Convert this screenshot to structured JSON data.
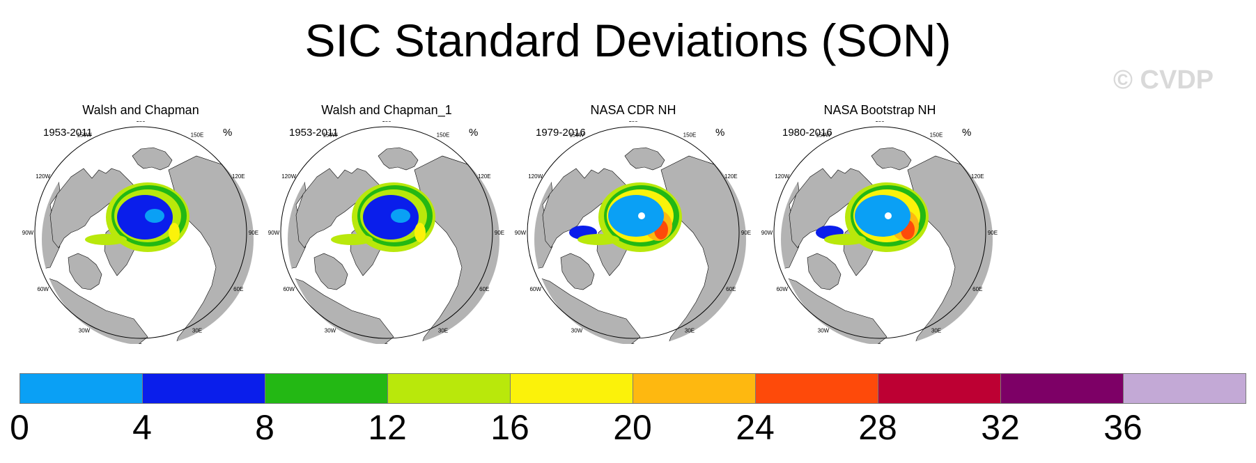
{
  "title": "SIC Standard Deviations (SON)",
  "watermark": "© CVDP",
  "lon_labels": [
    "180",
    "150E",
    "120E",
    "90E",
    "60E",
    "30E",
    "0",
    "30W",
    "60W",
    "90W",
    "120W",
    "150W"
  ],
  "panels": [
    {
      "name": "Walsh and Chapman",
      "years": "1953-2011",
      "units": "%"
    },
    {
      "name": "Walsh and Chapman_1",
      "years": "1953-2011",
      "units": "%"
    },
    {
      "name": "NASA CDR NH",
      "years": "1979-2016",
      "units": "%"
    },
    {
      "name": "NASA Bootstrap NH",
      "years": "1980-2016",
      "units": "%"
    }
  ],
  "colorbar": {
    "labels": [
      "0",
      "4",
      "8",
      "12",
      "16",
      "20",
      "24",
      "28",
      "32",
      "36"
    ],
    "colors": [
      "#0aa0f5",
      "#0a1eeb",
      "#23b814",
      "#b9e80b",
      "#fbf20a",
      "#feb810",
      "#fe4a0a",
      "#bd0033",
      "#7d0066",
      "#c3a9d6"
    ]
  }
}
